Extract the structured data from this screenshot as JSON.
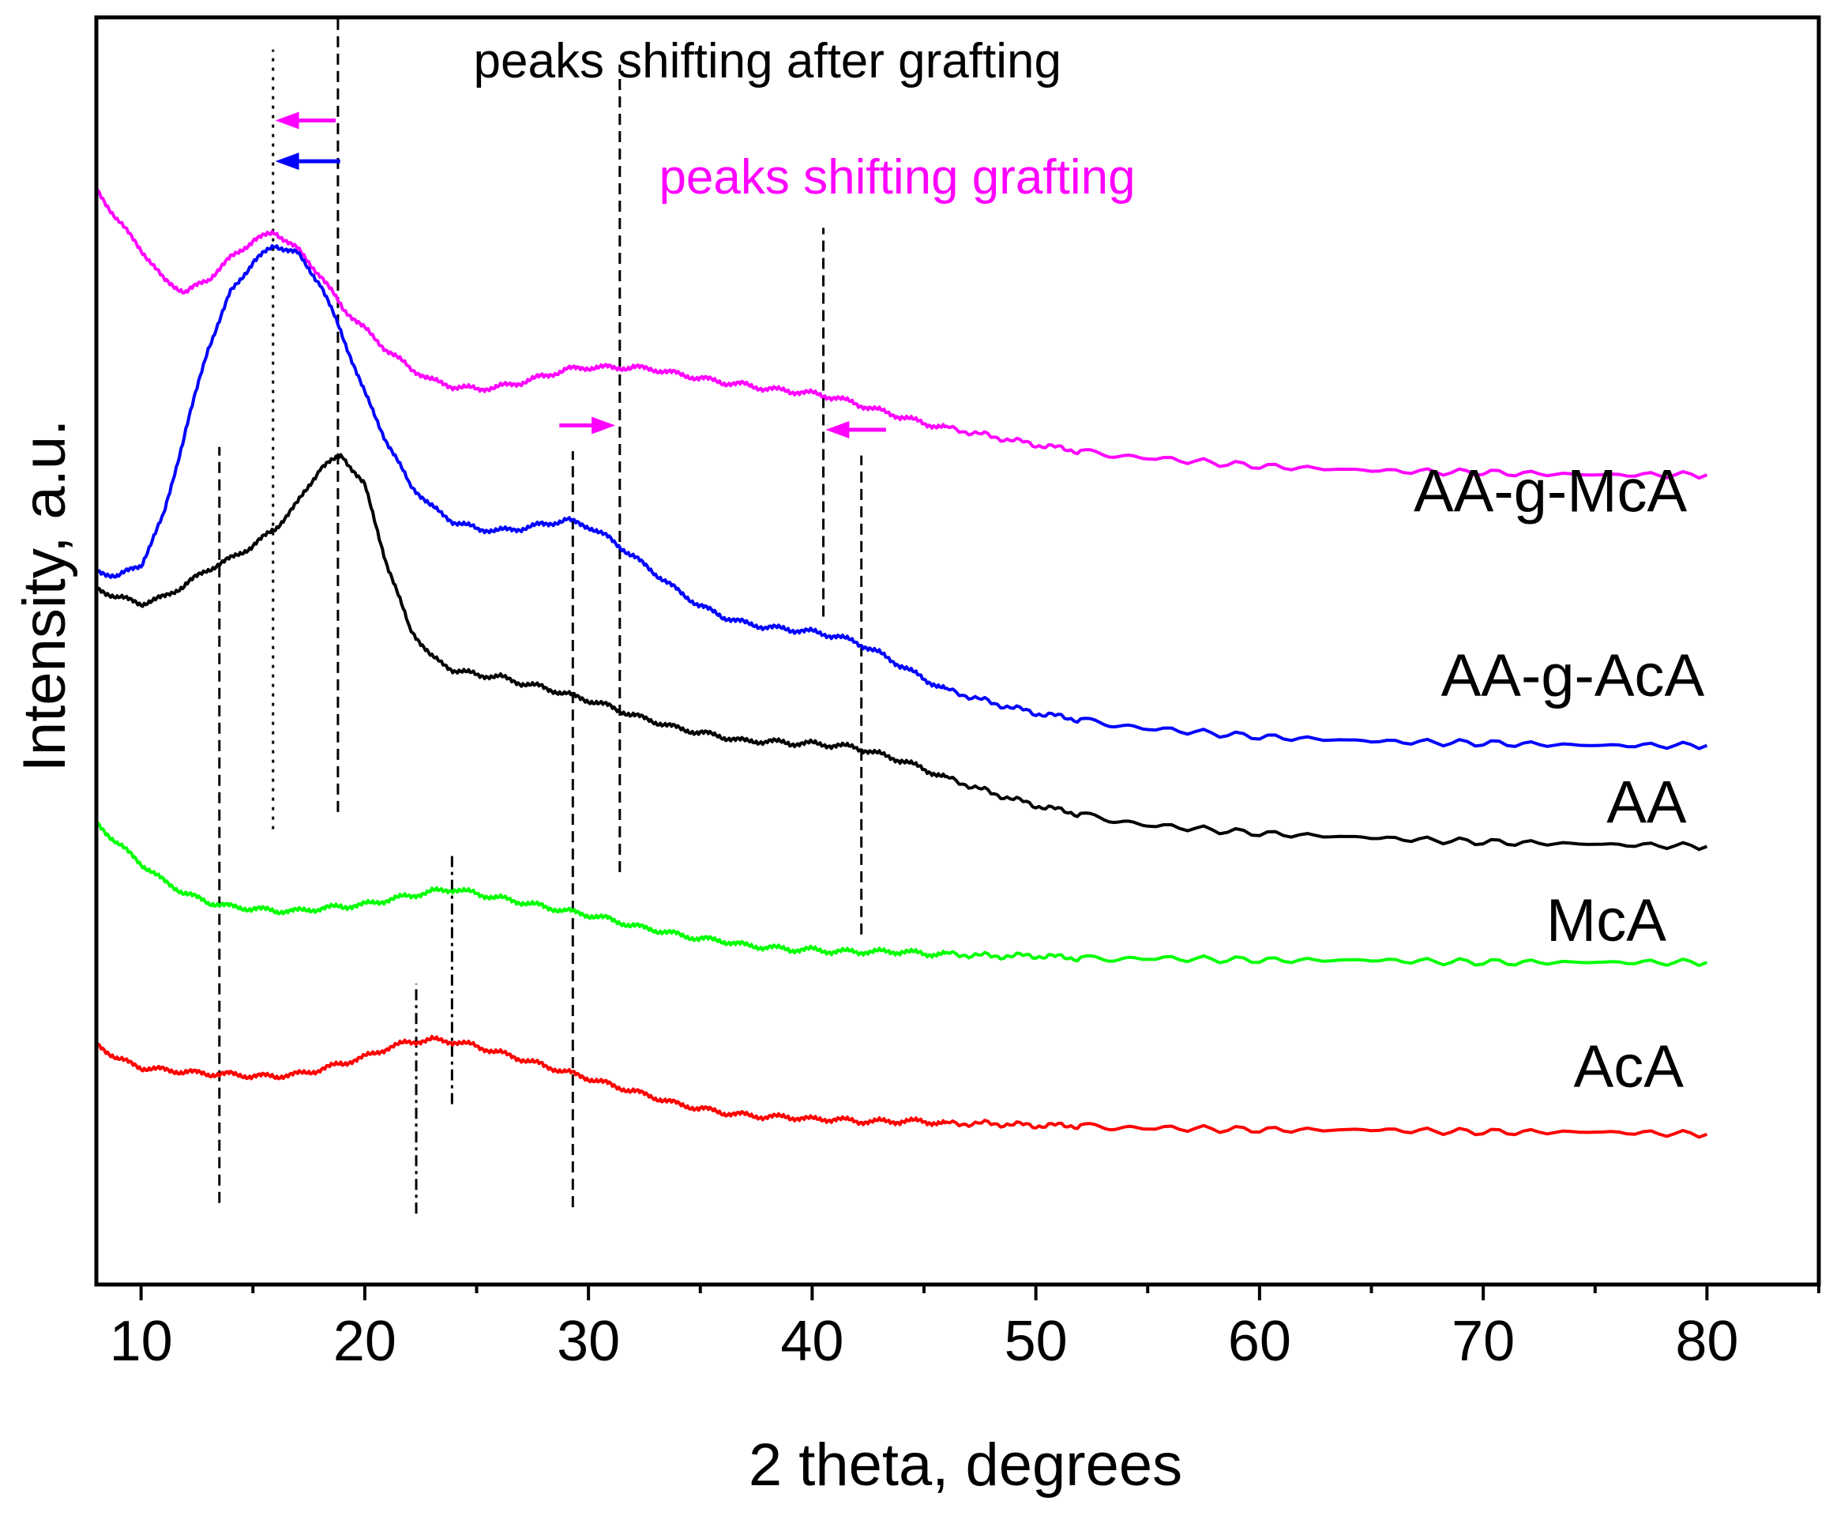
{
  "chart_data": {
    "type": "line",
    "title": "",
    "xlabel": "2 theta, degrees",
    "ylabel": "Intensity, a.u.",
    "xlim": [
      8,
      85
    ],
    "ylim": [
      0,
      5.9
    ],
    "x_ticks": [
      10,
      20,
      30,
      40,
      50,
      60,
      70,
      80
    ],
    "x_tick_labels": [
      "10",
      "20",
      "30",
      "40",
      "50",
      "60",
      "70",
      "80"
    ],
    "y_ticks": [],
    "grid": false,
    "legend": "none",
    "series": [
      {
        "name": "AA-g-McA",
        "color": "#ff00ff",
        "x": [
          8,
          9,
          10,
          11,
          12,
          13,
          14,
          15,
          16,
          17,
          18,
          19,
          20,
          21,
          22,
          23,
          24,
          25,
          26,
          27,
          28,
          29,
          30,
          31,
          32,
          33,
          34,
          35,
          36,
          37,
          38,
          39,
          40,
          41,
          42,
          43,
          44,
          45,
          46,
          48,
          50,
          52,
          55,
          60,
          65,
          70,
          75,
          80
        ],
        "y": [
          5.1,
          4.95,
          4.82,
          4.68,
          4.62,
          4.68,
          4.78,
          4.86,
          4.9,
          4.82,
          4.7,
          4.55,
          4.45,
          4.35,
          4.27,
          4.21,
          4.18,
          4.17,
          4.18,
          4.2,
          4.23,
          4.26,
          4.27,
          4.27,
          4.27,
          4.26,
          4.24,
          4.22,
          4.2,
          4.19,
          4.17,
          4.16,
          4.15,
          4.13,
          4.1,
          4.07,
          4.04,
          4.01,
          3.99,
          3.95,
          3.91,
          3.88,
          3.85,
          3.81,
          3.79,
          3.78,
          3.77,
          3.77
        ]
      },
      {
        "name": "AA-g-AcA",
        "color": "#0000ff",
        "x": [
          8,
          9,
          10,
          11,
          12,
          13,
          14,
          15,
          16,
          17,
          18,
          19,
          20,
          21,
          22,
          23,
          24,
          25,
          26,
          27,
          28,
          29,
          30,
          31,
          32,
          33,
          34,
          35,
          36,
          37,
          38,
          39,
          40,
          41,
          42,
          43,
          44,
          45,
          46,
          48,
          50,
          52,
          55,
          60,
          65,
          70,
          75,
          80
        ],
        "y": [
          3.32,
          3.3,
          3.35,
          3.58,
          3.98,
          4.36,
          4.62,
          4.76,
          4.84,
          4.8,
          4.66,
          4.42,
          4.15,
          3.92,
          3.73,
          3.62,
          3.55,
          3.52,
          3.51,
          3.52,
          3.54,
          3.56,
          3.53,
          3.47,
          3.39,
          3.31,
          3.23,
          3.16,
          3.11,
          3.08,
          3.06,
          3.05,
          3.04,
          3.02,
          2.99,
          2.94,
          2.88,
          2.82,
          2.77,
          2.71,
          2.66,
          2.63,
          2.59,
          2.55,
          2.53,
          2.52,
          2.51,
          2.51
        ]
      },
      {
        "name": "AA",
        "color": "#000000",
        "x": [
          8,
          9,
          10,
          11,
          12,
          13,
          14,
          15,
          16,
          17,
          18,
          19,
          20,
          21,
          22,
          23,
          24,
          25,
          26,
          27,
          28,
          29,
          30,
          31,
          32,
          33,
          34,
          35,
          36,
          37,
          38,
          39,
          40,
          41,
          42,
          43,
          44,
          45,
          46,
          48,
          50,
          52,
          55,
          60,
          65,
          70,
          75,
          80
        ],
        "y": [
          3.24,
          3.2,
          3.17,
          3.2,
          3.26,
          3.33,
          3.38,
          3.44,
          3.52,
          3.64,
          3.8,
          3.86,
          3.72,
          3.35,
          3.06,
          2.92,
          2.86,
          2.84,
          2.83,
          2.8,
          2.78,
          2.75,
          2.72,
          2.69,
          2.65,
          2.62,
          2.59,
          2.57,
          2.55,
          2.53,
          2.53,
          2.52,
          2.52,
          2.51,
          2.5,
          2.47,
          2.44,
          2.4,
          2.36,
          2.29,
          2.23,
          2.19,
          2.14,
          2.1,
          2.08,
          2.06,
          2.05,
          2.04
        ]
      },
      {
        "name": "McA",
        "color": "#00ff00",
        "x": [
          8,
          9,
          10,
          11,
          12,
          13,
          14,
          15,
          16,
          17,
          18,
          19,
          20,
          21,
          22,
          23,
          24,
          25,
          26,
          27,
          28,
          29,
          30,
          31,
          32,
          33,
          34,
          35,
          36,
          37,
          38,
          39,
          40,
          41,
          42,
          43,
          44,
          45,
          46,
          48,
          50,
          52,
          55,
          60,
          65,
          70,
          75,
          80
        ],
        "y": [
          2.15,
          2.05,
          1.96,
          1.88,
          1.82,
          1.78,
          1.76,
          1.75,
          1.74,
          1.74,
          1.75,
          1.76,
          1.77,
          1.79,
          1.81,
          1.83,
          1.84,
          1.82,
          1.8,
          1.78,
          1.76,
          1.74,
          1.72,
          1.7,
          1.67,
          1.65,
          1.63,
          1.61,
          1.6,
          1.58,
          1.57,
          1.56,
          1.56,
          1.55,
          1.55,
          1.55,
          1.55,
          1.54,
          1.54,
          1.53,
          1.53,
          1.52,
          1.52,
          1.51,
          1.51,
          1.5,
          1.5,
          1.5
        ]
      },
      {
        "name": "AcA",
        "color": "#ff0000",
        "x": [
          8,
          9,
          10,
          11,
          12,
          13,
          14,
          15,
          16,
          17,
          18,
          19,
          20,
          21,
          22,
          23,
          24,
          25,
          26,
          27,
          28,
          29,
          30,
          31,
          32,
          33,
          34,
          35,
          36,
          37,
          38,
          39,
          40,
          41,
          42,
          43,
          44,
          45,
          46,
          48,
          50,
          52,
          55,
          60,
          65,
          70,
          75,
          80
        ],
        "y": [
          1.12,
          1.05,
          1.01,
          1.0,
          0.99,
          0.98,
          0.98,
          0.97,
          0.97,
          0.98,
          1.0,
          1.03,
          1.06,
          1.1,
          1.13,
          1.14,
          1.13,
          1.11,
          1.08,
          1.05,
          1.02,
          0.99,
          0.96,
          0.93,
          0.9,
          0.87,
          0.84,
          0.82,
          0.8,
          0.79,
          0.78,
          0.78,
          0.77,
          0.77,
          0.76,
          0.76,
          0.76,
          0.76,
          0.75,
          0.75,
          0.74,
          0.74,
          0.73,
          0.72,
          0.72,
          0.71,
          0.71,
          0.7
        ]
      }
    ],
    "series_labels": [
      {
        "text": "AA-g-McA",
        "x": 73,
        "y": 3.6
      },
      {
        "text": "AA-g-AcA",
        "x": 74,
        "y": 2.74
      },
      {
        "text": "AA",
        "x": 77.3,
        "y": 2.15
      },
      {
        "text": "McA",
        "x": 75.5,
        "y": 1.6
      },
      {
        "text": "AcA",
        "x": 76.5,
        "y": 0.92
      }
    ],
    "annotations": [
      {
        "text": "peaks shifting after grafting",
        "color": "#000000",
        "x": 38,
        "y": 5.62
      },
      {
        "text": "peaks shifting grafting",
        "color": "#ff00ff",
        "x": 43.8,
        "y": 5.08
      }
    ],
    "reference_lines": [
      {
        "x": 13.5,
        "y1": 0.38,
        "y2": 3.9,
        "color": "#000000",
        "style": "dashed"
      },
      {
        "x": 15.9,
        "y1": 2.12,
        "y2": 5.75,
        "color": "#000000",
        "style": "dotted"
      },
      {
        "x": 18.8,
        "y1": 2.2,
        "y2": 5.9,
        "color": "#000000",
        "style": "dashed"
      },
      {
        "x": 22.3,
        "y1": 0.33,
        "y2": 1.4,
        "color": "#000000",
        "style": "dashdot"
      },
      {
        "x": 23.9,
        "y1": 0.84,
        "y2": 2.0,
        "color": "#000000",
        "style": "dashdot"
      },
      {
        "x": 29.3,
        "y1": 0.36,
        "y2": 3.88,
        "color": "#000000",
        "style": "dashed"
      },
      {
        "x": 31.4,
        "y1": 1.92,
        "y2": 5.68,
        "color": "#000000",
        "style": "dashed"
      },
      {
        "x": 40.5,
        "y1": 3.11,
        "y2": 4.92,
        "color": "#000000",
        "style": "dashed"
      },
      {
        "x": 42.2,
        "y1": 1.63,
        "y2": 3.86,
        "color": "#000000",
        "style": "dashed"
      }
    ],
    "arrows": [
      {
        "from_x": 18.7,
        "to_x": 16.0,
        "y": 5.42,
        "color": "#ff00ff"
      },
      {
        "from_x": 18.9,
        "to_x": 16.0,
        "y": 5.23,
        "color": "#0000ff"
      },
      {
        "from_x": 28.7,
        "to_x": 31.2,
        "y": 4.0,
        "color": "#ff00ff"
      },
      {
        "from_x": 43.3,
        "to_x": 40.6,
        "y": 3.98,
        "color": "#ff00ff"
      }
    ]
  }
}
